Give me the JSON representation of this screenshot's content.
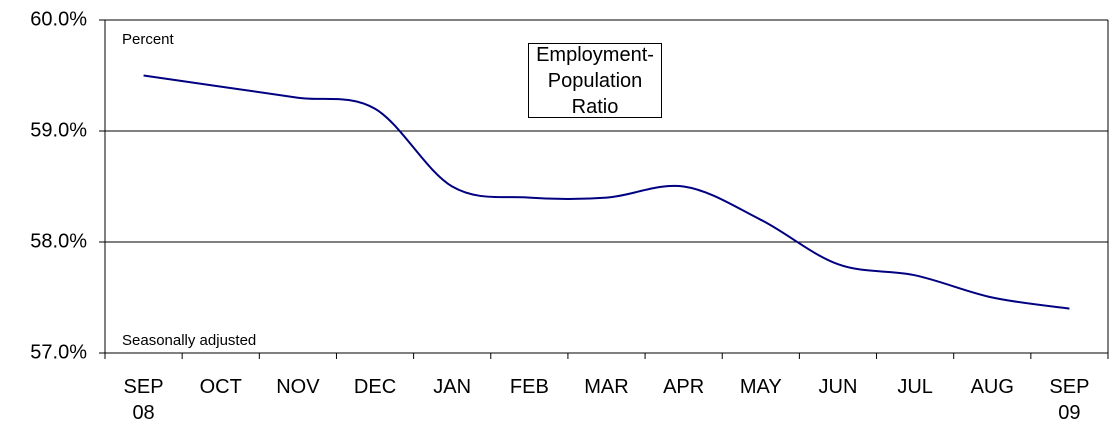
{
  "chart_data": {
    "type": "line",
    "title": "Employment-Population Ratio",
    "annotations": [
      "Percent",
      "Seasonally adjusted"
    ],
    "categories": [
      "SEP 08",
      "OCT",
      "NOV",
      "DEC",
      "JAN",
      "FEB",
      "MAR",
      "APR",
      "MAY",
      "JUN",
      "JUL",
      "AUG",
      "SEP 09"
    ],
    "series": [
      {
        "name": "Employment-Population Ratio",
        "color": "#000080",
        "values": [
          59.5,
          59.4,
          59.3,
          59.2,
          58.5,
          58.4,
          58.4,
          58.5,
          58.2,
          57.8,
          57.7,
          57.5,
          57.4
        ]
      }
    ],
    "ylim": [
      57,
      60
    ],
    "yticks": [
      {
        "value": 57,
        "label": "57.0%"
      },
      {
        "value": 58,
        "label": "58.0%"
      },
      {
        "value": 59,
        "label": "59.0%"
      },
      {
        "value": 60,
        "label": "60.0%"
      }
    ],
    "grid": true
  }
}
